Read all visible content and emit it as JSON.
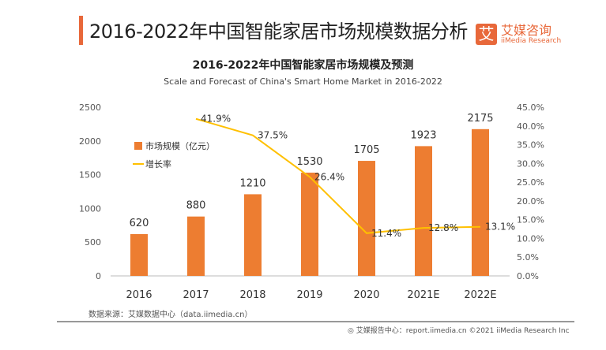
{
  "header": {
    "title": "2016-2022年中国智能家居市场规模数据分析",
    "logo_cn": "艾媒咨询",
    "logo_en": "iiMedia Research",
    "logo_mark": "艾"
  },
  "chart_data": {
    "type": "bar+line",
    "title": "2016-2022年中国智能家居市场规模及预测",
    "subtitle": "Scale and Forecast of China's Smart Home Market in 2016-2022",
    "categories": [
      "2016",
      "2017",
      "2018",
      "2019",
      "2020",
      "2021E",
      "2022E"
    ],
    "series": [
      {
        "name": "市场规模（亿元）",
        "type": "bar",
        "axis": "left",
        "color": "#ed7d31",
        "values": [
          620,
          880,
          1210,
          1530,
          1705,
          1923,
          2175
        ],
        "labels": [
          "620",
          "880",
          "1210",
          "1530",
          "1705",
          "1923",
          "2175"
        ]
      },
      {
        "name": "增长率",
        "type": "line",
        "axis": "right",
        "color": "#ffc000",
        "values": [
          null,
          41.9,
          37.5,
          26.4,
          11.4,
          12.8,
          13.1
        ],
        "labels": [
          "",
          "41.9%",
          "37.5%",
          "26.4%",
          "11.4%",
          "12.8%",
          "13.1%"
        ]
      }
    ],
    "y_left": {
      "range": [
        0,
        2500
      ],
      "ticks": [
        "0",
        "500",
        "1000",
        "1500",
        "2000",
        "2500"
      ]
    },
    "y_right": {
      "range": [
        0,
        45
      ],
      "ticks": [
        "0.0%",
        "5.0%",
        "10.0%",
        "15.0%",
        "20.0%",
        "25.0%",
        "30.0%",
        "35.0%",
        "40.0%",
        "45.0%"
      ]
    },
    "grid": false,
    "legend": "top-left"
  },
  "footer": {
    "source": "数据来源：艾媒数据中心（data.iimedia.cn）",
    "credit": "艾媒报告中心：report.iimedia.cn  ©2021  iiMedia Research Inc"
  }
}
